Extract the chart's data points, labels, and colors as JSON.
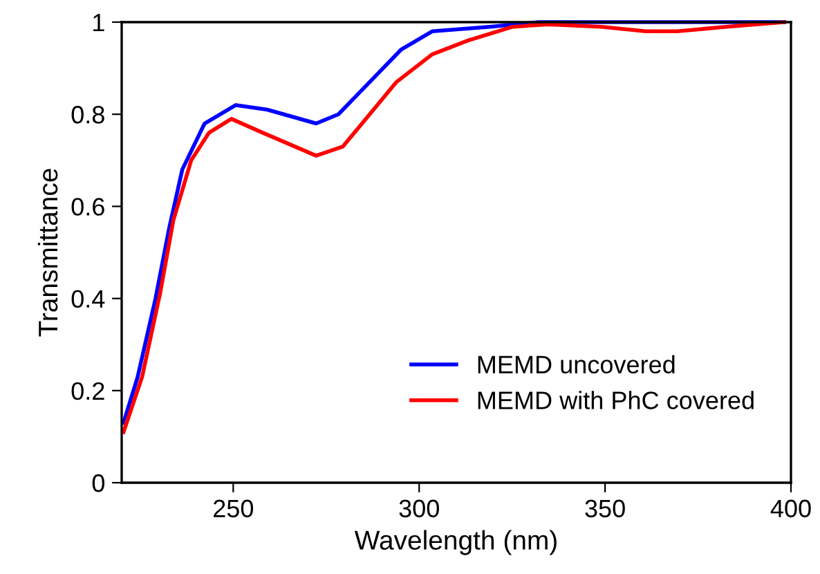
{
  "chart_data": {
    "type": "line",
    "xlabel": "Wavelength (nm)",
    "ylabel": "Transmittance",
    "xlim": [
      220,
      400
    ],
    "xticks": [
      250,
      300,
      350,
      400
    ],
    "ylim": [
      0,
      1
    ],
    "yticks": [
      0,
      0.2,
      0.4,
      0.6,
      0.8,
      1
    ],
    "grid": false,
    "legend": "bottom right",
    "series": [
      {
        "name": "MEMD uncovered",
        "color": "#0000ff",
        "x": [
          220.5,
          224.3,
          229.1,
          232.7,
          236.3,
          242.3,
          250.7,
          259.1,
          272.3,
          278.3,
          286.7,
          295.1,
          303.5,
          319.0,
          332.2,
          340.6,
          361.0,
          398.2
        ],
        "values": [
          0.13,
          0.23,
          0.4,
          0.55,
          0.68,
          0.78,
          0.82,
          0.81,
          0.78,
          0.8,
          0.87,
          0.94,
          0.98,
          0.99,
          1.0,
          1.0,
          1.0,
          1.0
        ]
      },
      {
        "name": "MEMD with PhC covered",
        "color": "#ff0000",
        "x": [
          220.5,
          225.5,
          230.3,
          233.9,
          238.7,
          243.5,
          249.5,
          257.9,
          272.3,
          279.5,
          286.7,
          293.9,
          303.5,
          313.1,
          325.2,
          334.7,
          349.0,
          361.0,
          369.4,
          382.6,
          398.2
        ],
        "values": [
          0.11,
          0.23,
          0.41,
          0.57,
          0.7,
          0.76,
          0.79,
          0.76,
          0.71,
          0.73,
          0.8,
          0.87,
          0.93,
          0.96,
          0.99,
          0.995,
          0.99,
          0.98,
          0.98,
          0.99,
          1.0
        ]
      }
    ]
  }
}
